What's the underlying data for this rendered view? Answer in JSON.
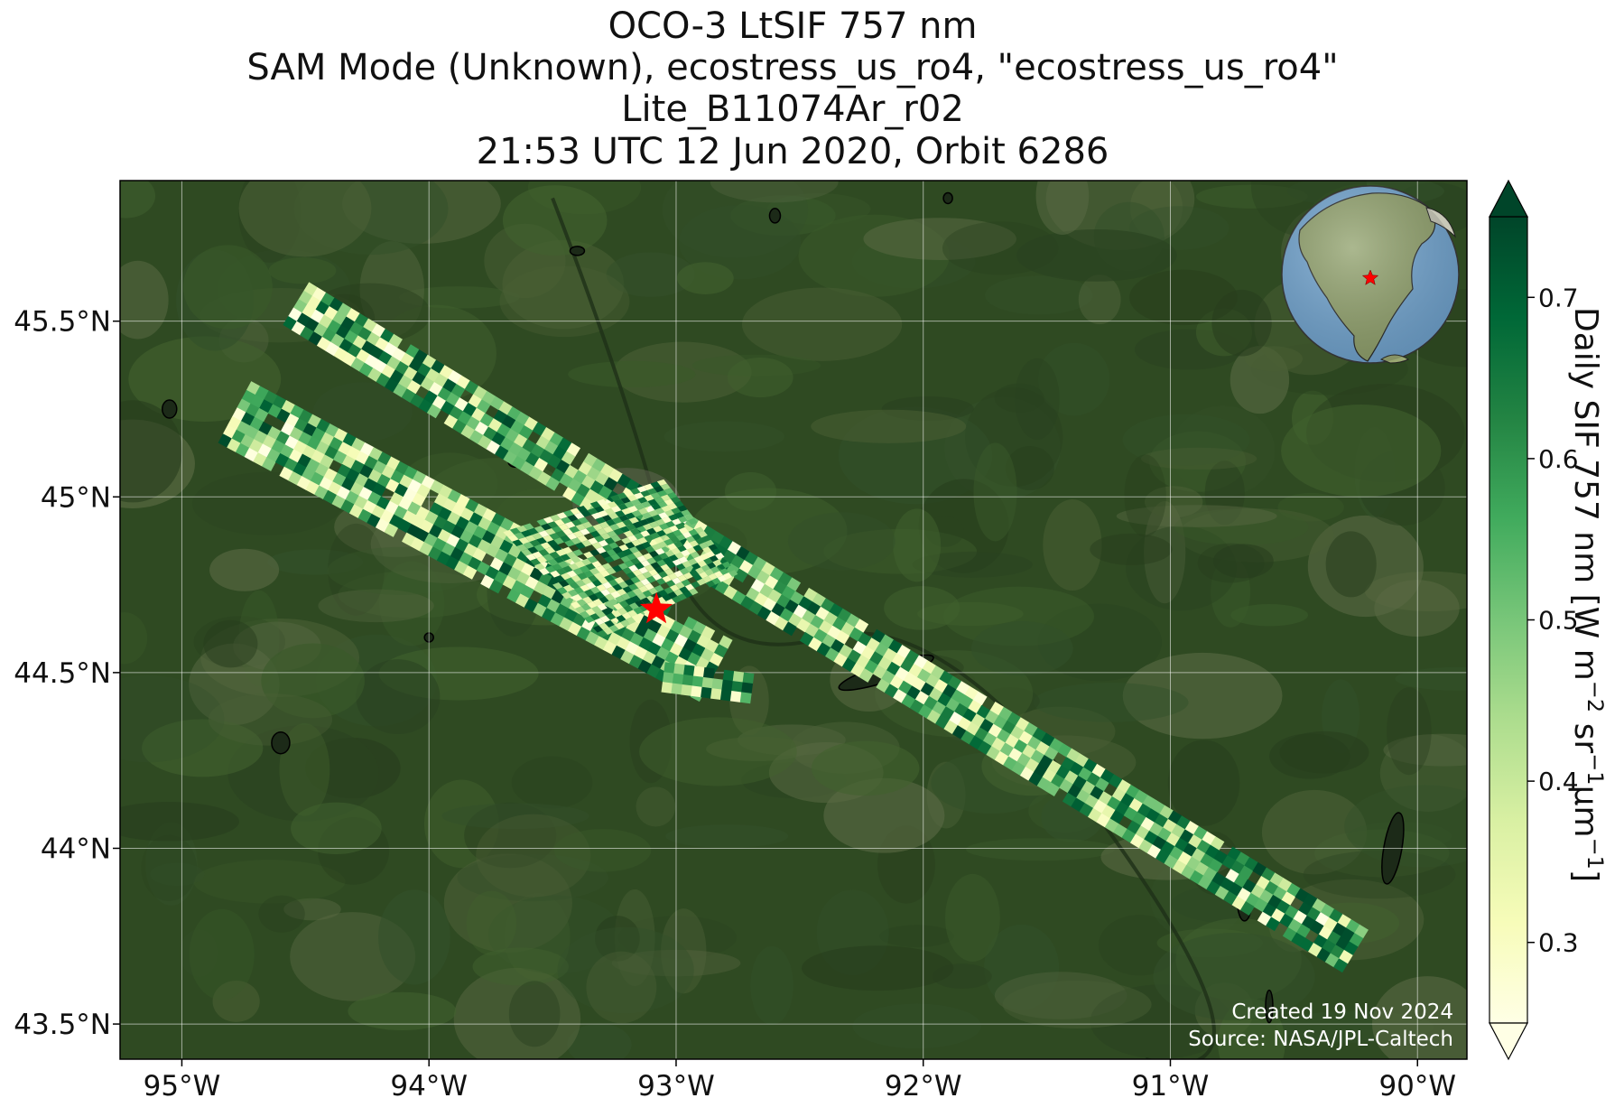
{
  "title": {
    "line1": "OCO-3 LtSIF 757 nm",
    "line2": "SAM Mode (Unknown), ecostress_us_ro4, \"ecostress_us_ro4\"",
    "line3": "Lite_B11074Ar_r02",
    "line4": "21:53 UTC 12 Jun 2020, Orbit 6286"
  },
  "map": {
    "lon_range": [
      -95.25,
      -89.8
    ],
    "lat_range": [
      43.4,
      45.9
    ],
    "lon_ticks": [
      {
        "value": -95,
        "label": "95°W"
      },
      {
        "value": -94,
        "label": "94°W"
      },
      {
        "value": -93,
        "label": "93°W"
      },
      {
        "value": -92,
        "label": "92°W"
      },
      {
        "value": -91,
        "label": "91°W"
      },
      {
        "value": -90,
        "label": "90°W"
      }
    ],
    "lat_ticks": [
      {
        "value": 45.5,
        "label": "45.5°N"
      },
      {
        "value": 45.0,
        "label": "45°N"
      },
      {
        "value": 44.5,
        "label": "44.5°N"
      },
      {
        "value": 44.0,
        "label": "44°N"
      },
      {
        "value": 43.5,
        "label": "43.5°N"
      }
    ],
    "target_marker": {
      "lon": -93.08,
      "lat": 44.68,
      "symbol": "star-icon",
      "color": "#ff0000"
    },
    "background_color": "#2f4a22",
    "swaths": [
      {
        "name": "swath-a",
        "start": {
          "lon": -94.53,
          "lat": 45.56
        },
        "end": {
          "lon": -90.25,
          "lat": 43.72
        },
        "half_width_lat": 0.06
      },
      {
        "name": "swath-b",
        "start": {
          "lon": -94.78,
          "lat": 45.25
        },
        "end": {
          "lon": -92.85,
          "lat": 44.52
        },
        "half_width_lat": 0.09
      }
    ],
    "sam_block": {
      "corners": [
        [
          -93.7,
          44.9
        ],
        [
          -93.05,
          45.05
        ],
        [
          -92.75,
          44.78
        ],
        [
          -93.3,
          44.6
        ]
      ]
    }
  },
  "inset": {
    "symbol": "globe-icon",
    "marker": "star-icon",
    "ocean_color": "#6fa3cf",
    "land_color": "#8fa06a",
    "marker_color": "#ff0000"
  },
  "colorbar": {
    "label_main": "Daily SIF 757 nm [W m",
    "label_exp1": "−2",
    "label_mid": " sr",
    "label_exp2": "−1",
    "label_mid2": "μm",
    "label_exp3": "−1",
    "label_end": "]",
    "vmin": 0.25,
    "vmax": 0.75,
    "ticks": [
      {
        "value": 0.3,
        "label": "0.3"
      },
      {
        "value": 0.4,
        "label": "0.4"
      },
      {
        "value": 0.5,
        "label": "0.5"
      },
      {
        "value": 0.6,
        "label": "0.6"
      },
      {
        "value": 0.7,
        "label": "0.7"
      }
    ],
    "colors": [
      "#ffffe5",
      "#f7fcb9",
      "#d9f0a3",
      "#addd8e",
      "#78c679",
      "#41ab5d",
      "#238443",
      "#006837",
      "#004529"
    ]
  },
  "credits": {
    "created": "Created 19 Nov 2024",
    "source": "Source: NASA/JPL-Caltech"
  }
}
